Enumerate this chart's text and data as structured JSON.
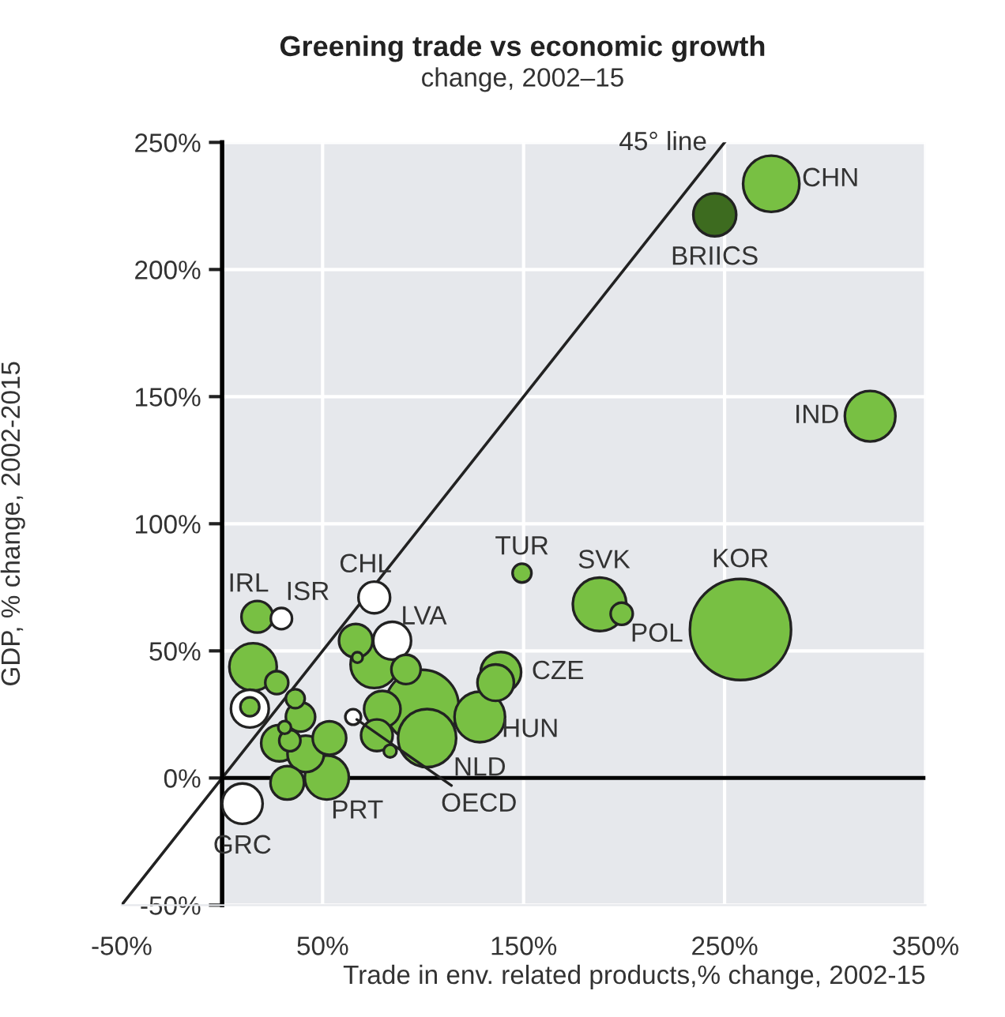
{
  "chart_data": {
    "type": "bubble",
    "title": "Greening trade vs economic growth",
    "subtitle": "change, 2002–15",
    "xlabel": "Trade in env. related products,% change, 2002-15",
    "ylabel": "GDP, % change, 2002-2015",
    "xlim": [
      -50,
      350
    ],
    "ylim": [
      -50,
      250
    ],
    "xticks": [
      {
        "value": -50,
        "label": "-50%"
      },
      {
        "value": 50,
        "label": "50%"
      },
      {
        "value": 150,
        "label": "150%"
      },
      {
        "value": 250,
        "label": "250%"
      },
      {
        "value": 350,
        "label": "350%"
      }
    ],
    "yticks": [
      {
        "value": -50,
        "label": "-50%"
      },
      {
        "value": 0,
        "label": "0%"
      },
      {
        "value": 50,
        "label": "50%"
      },
      {
        "value": 100,
        "label": "100%"
      },
      {
        "value": 150,
        "label": "150%"
      },
      {
        "value": 200,
        "label": "200%"
      },
      {
        "value": 250,
        "label": "250%"
      }
    ],
    "grid": true,
    "ref_lines": [
      {
        "axis": "y",
        "value": 0,
        "color": "#000000"
      }
    ],
    "bands": [
      {
        "axis": "x",
        "from": 0,
        "to": 350,
        "color": "#e6e8ec"
      }
    ],
    "series": [
      {
        "color": "#78c043",
        "x": [
          17.5,
          66.5,
          67.3,
          15.4,
          27.2,
          13.8,
          36.4,
          75.7,
          91.5,
          99.4,
          79.7,
          77.0,
          83.6,
          102.0,
          128.2,
          138.7,
          136.1,
          149.2,
          39.0,
          31.1,
          33.7,
          28.5,
          41.6,
          53.4,
          52.1,
          32.4,
          187.8,
          198.8,
          257.9,
          273.2,
          322.4
        ],
        "values": [
          63.4,
          54.0,
          47.4,
          43.7,
          37.5,
          28.0,
          31.2,
          44.7,
          42.7,
          28.1,
          27.1,
          16.8,
          10.6,
          15.7,
          24.0,
          41.6,
          37.5,
          80.6,
          24.0,
          19.9,
          14.7,
          13.7,
          9.5,
          15.7,
          0.2,
          -1.9,
          68.3,
          64.6,
          58.4,
          233.7,
          142.3
        ],
        "sizes": [
          0.098,
          0.11,
          0.011,
          0.22,
          0.052,
          0.035,
          0.035,
          0.22,
          0.084,
          0.53,
          0.13,
          0.098,
          0.016,
          0.33,
          0.25,
          0.16,
          0.13,
          0.035,
          0.084,
          0.016,
          0.044,
          0.13,
          0.13,
          0.11,
          0.19,
          0.11,
          0.28,
          0.048,
          1,
          0.31,
          0.25
        ]
      },
      {
        "color": "#ffffff",
        "x": [
          29.5,
          75.7,
          84.6,
          13.8,
          65.2,
          10.1
        ],
        "values": [
          62.7,
          71.0,
          54.0,
          27.3,
          24.0,
          -10.1
        ],
        "sizes": [
          0.044,
          0.098,
          0.14,
          0.14,
          0.024,
          0.16
        ]
      },
      {
        "color": "#3d6b1f",
        "x": [
          245.1
        ],
        "values": [
          221.5
        ],
        "sizes": [
          0.18
        ]
      },
      {
        "type": "line",
        "color": "#222222",
        "x": [
          -50,
          250
        ],
        "values": [
          -50,
          250
        ]
      }
    ],
    "annotations": [
      {
        "text": "CHN",
        "x": 273.2,
        "y": 233.7
      },
      {
        "text": "BRIICS",
        "x": 245.1,
        "y": 221.5
      },
      {
        "text": "IND",
        "x": 322.4,
        "y": 142.3
      },
      {
        "text": "TUR",
        "x": 149.2,
        "y": 80.6
      },
      {
        "text": "SVK",
        "x": 187.8,
        "y": 68.3
      },
      {
        "text": "KOR",
        "x": 257.9,
        "y": 58.4
      },
      {
        "text": "POL",
        "x": 198.8,
        "y": 64.6
      },
      {
        "text": "IRL",
        "x": 17.5,
        "y": 63.4
      },
      {
        "text": "ISR",
        "x": 29.5,
        "y": 62.7
      },
      {
        "text": "CHL",
        "x": 75.7,
        "y": 71.0
      },
      {
        "text": "LVA",
        "x": 84.6,
        "y": 54.0
      },
      {
        "text": "CZE",
        "x": 138.7,
        "y": 41.6
      },
      {
        "text": "HUN",
        "x": 128.2,
        "y": 24.0
      },
      {
        "text": "NLD",
        "x": 102.0,
        "y": 15.7
      },
      {
        "text": "PRT",
        "x": 52.1,
        "y": 0.2
      },
      {
        "text": "OECD",
        "x": 65.2,
        "y": 24.0
      },
      {
        "text": "GRC",
        "x": 10.1,
        "y": -10.1
      },
      {
        "text": "45° line",
        "x": 250,
        "y": 250
      }
    ]
  }
}
